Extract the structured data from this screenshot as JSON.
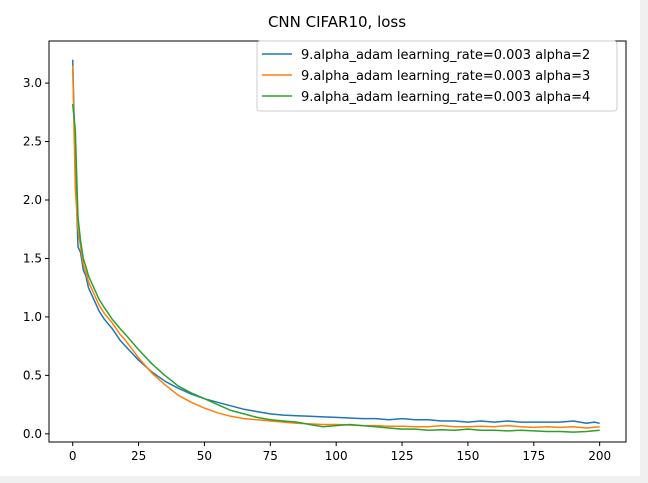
{
  "chart_data": {
    "type": "line",
    "title": "CNN CIFAR10, loss",
    "xlabel": "",
    "ylabel": "",
    "xlim": [
      -9,
      210
    ],
    "ylim": [
      -0.07,
      3.36
    ],
    "xticks": [
      0,
      25,
      50,
      75,
      100,
      125,
      150,
      175,
      200
    ],
    "yticks": [
      0.0,
      0.5,
      1.0,
      1.5,
      2.0,
      2.5,
      3.0
    ],
    "xtick_labels": [
      "0",
      "25",
      "50",
      "75",
      "100",
      "125",
      "150",
      "175",
      "200"
    ],
    "ytick_labels": [
      "0.0",
      "0.5",
      "1.0",
      "1.5",
      "2.0",
      "2.5",
      "3.0"
    ],
    "legend_position": "top-right",
    "grid": false,
    "series": [
      {
        "name": "9.alpha_adam learning_rate=0.003 alpha=2",
        "color": "#1f77b4",
        "x": [
          0,
          1,
          2,
          3,
          4,
          5,
          6,
          8,
          10,
          12,
          15,
          18,
          20,
          25,
          30,
          35,
          40,
          45,
          50,
          55,
          60,
          65,
          70,
          75,
          80,
          85,
          90,
          95,
          100,
          105,
          110,
          115,
          120,
          125,
          130,
          135,
          140,
          145,
          150,
          155,
          160,
          165,
          170,
          175,
          180,
          185,
          190,
          195,
          198,
          200
        ],
        "y": [
          3.2,
          2.3,
          1.6,
          1.55,
          1.4,
          1.35,
          1.25,
          1.15,
          1.05,
          0.98,
          0.9,
          0.8,
          0.75,
          0.63,
          0.53,
          0.45,
          0.39,
          0.34,
          0.3,
          0.27,
          0.24,
          0.21,
          0.19,
          0.17,
          0.16,
          0.155,
          0.15,
          0.145,
          0.14,
          0.135,
          0.13,
          0.13,
          0.12,
          0.13,
          0.12,
          0.12,
          0.11,
          0.11,
          0.1,
          0.11,
          0.1,
          0.11,
          0.1,
          0.1,
          0.1,
          0.1,
          0.11,
          0.09,
          0.1,
          0.09
        ]
      },
      {
        "name": "9.alpha_adam learning_rate=0.003 alpha=3",
        "color": "#ff7f0e",
        "x": [
          0,
          1,
          2,
          3,
          4,
          5,
          6,
          8,
          10,
          12,
          15,
          18,
          20,
          25,
          30,
          35,
          40,
          45,
          50,
          55,
          60,
          65,
          70,
          75,
          80,
          85,
          90,
          95,
          100,
          105,
          110,
          115,
          120,
          125,
          130,
          135,
          140,
          145,
          150,
          155,
          160,
          165,
          170,
          175,
          180,
          185,
          190,
          195,
          200
        ],
        "y": [
          3.15,
          2.1,
          1.75,
          1.6,
          1.45,
          1.38,
          1.3,
          1.2,
          1.1,
          1.03,
          0.95,
          0.85,
          0.8,
          0.65,
          0.52,
          0.42,
          0.33,
          0.27,
          0.22,
          0.18,
          0.15,
          0.13,
          0.12,
          0.11,
          0.1,
          0.09,
          0.085,
          0.08,
          0.08,
          0.075,
          0.07,
          0.07,
          0.065,
          0.065,
          0.06,
          0.06,
          0.07,
          0.06,
          0.06,
          0.065,
          0.06,
          0.07,
          0.06,
          0.055,
          0.06,
          0.055,
          0.06,
          0.05,
          0.06
        ]
      },
      {
        "name": "9.alpha_adam learning_rate=0.003 alpha=4",
        "color": "#2ca02c",
        "x": [
          0,
          1,
          2,
          3,
          4,
          5,
          6,
          8,
          10,
          12,
          15,
          18,
          20,
          25,
          30,
          35,
          40,
          45,
          50,
          55,
          60,
          65,
          70,
          75,
          80,
          85,
          90,
          95,
          100,
          105,
          110,
          115,
          120,
          125,
          130,
          135,
          140,
          145,
          150,
          155,
          160,
          165,
          170,
          175,
          180,
          185,
          190,
          195,
          200
        ],
        "y": [
          2.82,
          2.6,
          1.85,
          1.65,
          1.5,
          1.43,
          1.35,
          1.25,
          1.15,
          1.08,
          0.98,
          0.9,
          0.85,
          0.72,
          0.6,
          0.5,
          0.41,
          0.35,
          0.3,
          0.25,
          0.2,
          0.17,
          0.14,
          0.12,
          0.11,
          0.1,
          0.08,
          0.06,
          0.07,
          0.08,
          0.07,
          0.06,
          0.05,
          0.04,
          0.04,
          0.03,
          0.035,
          0.03,
          0.04,
          0.03,
          0.03,
          0.025,
          0.03,
          0.025,
          0.02,
          0.02,
          0.015,
          0.02,
          0.03
        ]
      }
    ]
  }
}
